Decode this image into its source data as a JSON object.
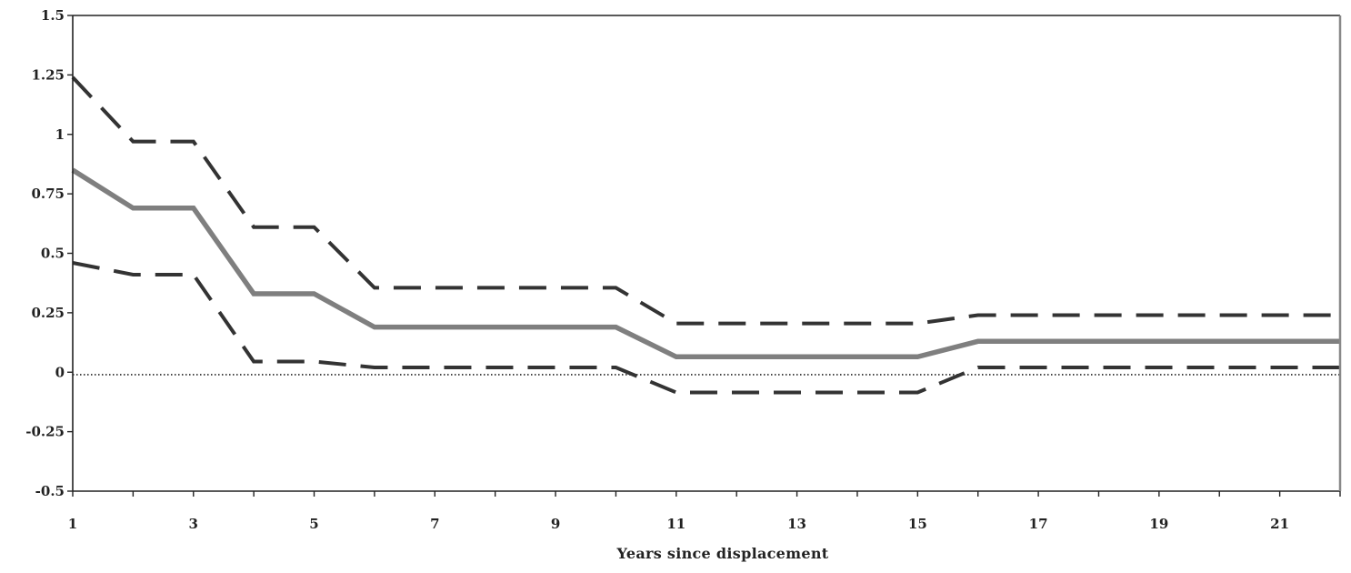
{
  "chart_data": {
    "type": "line",
    "title": "",
    "xlabel": "Years since displacement",
    "ylabel": "",
    "xlim": [
      1,
      22
    ],
    "ylim": [
      -0.5,
      1.5
    ],
    "xticks": [
      1,
      3,
      5,
      7,
      9,
      11,
      13,
      15,
      17,
      19,
      21
    ],
    "yticks": [
      -0.5,
      -0.25,
      0,
      0.25,
      0.5,
      0.75,
      1,
      1.25,
      1.5
    ],
    "ytick_labels": [
      "-0.5",
      "-0.25",
      "0",
      "0.25",
      "0.5",
      "0.75",
      "1",
      "1.25",
      "1.5"
    ],
    "grid": false,
    "legend": "none",
    "x": [
      1,
      2,
      3,
      4,
      5,
      6,
      10,
      11,
      15,
      16,
      22
    ],
    "series": [
      {
        "style": "solid",
        "color": "#7f7f7f",
        "values": [
          0.85,
          0.69,
          0.69,
          0.33,
          0.33,
          0.19,
          0.19,
          0.065,
          0.065,
          0.13,
          0.13
        ]
      },
      {
        "style": "dashed",
        "color": "#333333",
        "values": [
          1.24,
          0.97,
          0.97,
          0.61,
          0.61,
          0.355,
          0.355,
          0.205,
          0.205,
          0.24,
          0.24
        ]
      },
      {
        "style": "dashed",
        "color": "#333333",
        "values": [
          0.46,
          0.41,
          0.41,
          0.045,
          0.045,
          0.02,
          0.02,
          -0.085,
          -0.085,
          0.02,
          0.02
        ]
      },
      {
        "style": "dotted",
        "color": "#222222",
        "values": [
          -0.01,
          -0.01,
          -0.01,
          -0.01,
          -0.01,
          -0.01,
          -0.01,
          -0.01,
          -0.01,
          -0.01,
          -0.01
        ]
      }
    ]
  }
}
